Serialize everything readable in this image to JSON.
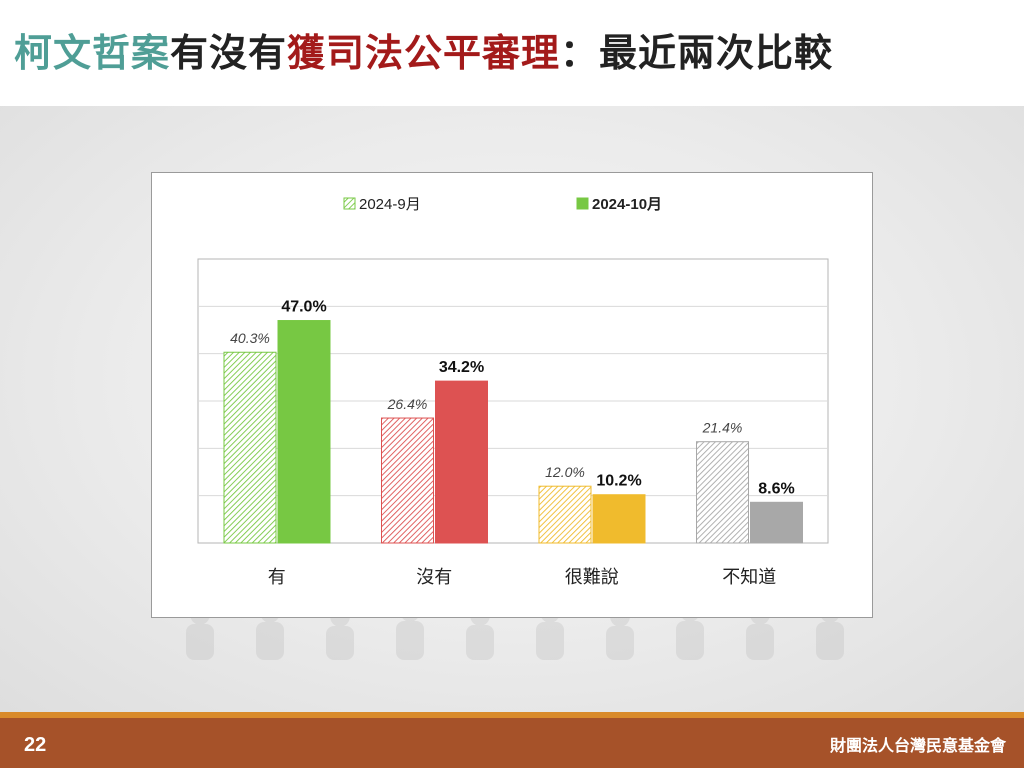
{
  "title": {
    "part1": "柯文哲案",
    "part2": "有沒有",
    "part3": "獲司法公平審理",
    "part4": "：最近兩次比較"
  },
  "colors": {
    "title_teal": "#4f9e96",
    "title_dark": "#222222",
    "title_red": "#a31a1a",
    "footer_bg": "#a65229",
    "footer_stripe": "#d98a2a",
    "green": "#77c843",
    "red": "#dd5252",
    "yellow": "#f0bb2d",
    "gray": "#a8a8a8"
  },
  "chart_data": {
    "type": "bar",
    "categories": [
      "有",
      "沒有",
      "很難說",
      "不知道"
    ],
    "series": [
      {
        "name": "2024-9月",
        "values": [
          40.3,
          26.4,
          12.0,
          21.4
        ],
        "labels": [
          "40.3%",
          "26.4%",
          "12.0%",
          "21.4%"
        ],
        "style": "hatched"
      },
      {
        "name": "2024-10月",
        "values": [
          47.0,
          34.2,
          10.2,
          8.6
        ],
        "labels": [
          "47.0%",
          "34.2%",
          "10.2%",
          "8.6%"
        ],
        "style": "solid"
      }
    ],
    "category_colors": [
      "#77c843",
      "#dd5252",
      "#f0bb2d",
      "#a8a8a8"
    ],
    "ylim": [
      0,
      60
    ],
    "grid": true,
    "legend_position": "top"
  },
  "footer": {
    "page_number": "22",
    "organization": "財團法人台灣民意基金會"
  }
}
